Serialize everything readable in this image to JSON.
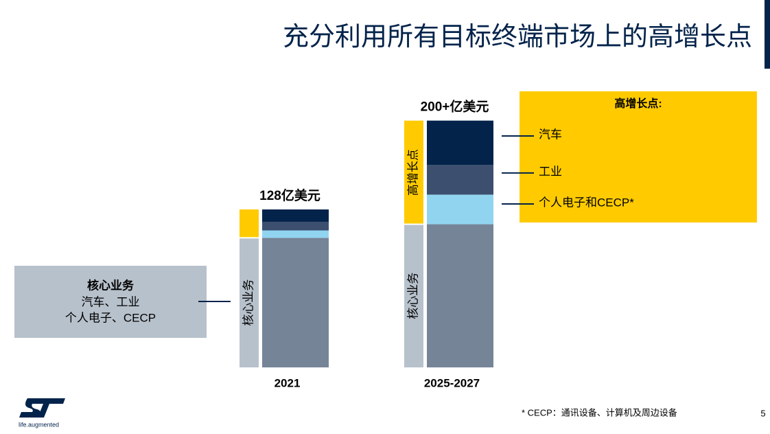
{
  "chart_data": {
    "type": "stacked_bar",
    "title": "充分利用所有目标终端市场上的高增长点",
    "categories": [
      "2021",
      "2025-2027"
    ],
    "series": [
      {
        "name": "核心业务",
        "color": "#768497",
        "values": [
          105,
          116
        ]
      },
      {
        "name": "个人电子和CECP*",
        "color": "#91d4f0",
        "values": [
          6,
          24
        ]
      },
      {
        "name": "工业",
        "color": "#3c4f6e",
        "values": [
          7,
          24
        ]
      },
      {
        "name": "汽车",
        "color": "#03234b",
        "values": [
          10,
          36
        ]
      }
    ],
    "totals": [
      128,
      200
    ],
    "total_labels": [
      "128亿美元",
      "200+亿美元"
    ],
    "growth_label": "高增长点",
    "growth_box_title": "高增长点:",
    "core_box_lines": [
      "汽车、工业",
      "个人电子、CECP"
    ],
    "footnote": "* CECP：通讯设备、计算机及周边设备",
    "page_number": "5",
    "logo_text": "life.augmented"
  }
}
